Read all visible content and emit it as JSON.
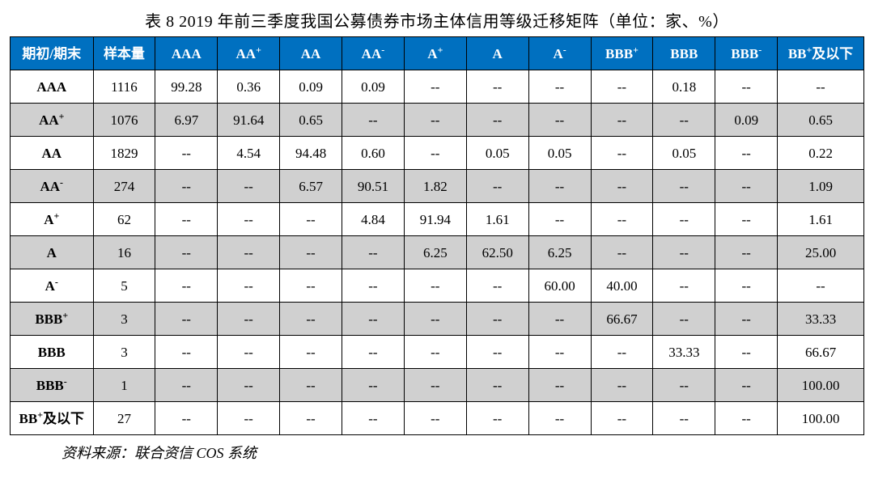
{
  "title": "表 8  2019 年前三季度我国公募债券市场主体信用等级迁移矩阵（单位：家、%）",
  "source": "资料来源：联合资信 COS 系统",
  "table": {
    "type": "table",
    "header_bg": "#0070c0",
    "header_fg": "#ffffff",
    "alt_row_bg": "#d0d0d0",
    "border_color": "#000000",
    "columns": [
      "期初/期末",
      "样本量",
      "AAA",
      "AA+",
      "AA",
      "AA-",
      "A+",
      "A",
      "A-",
      "BBB+",
      "BBB",
      "BBB-",
      "BB+及以下"
    ],
    "columns_html": [
      "期初/期末",
      "样本量",
      "AAA",
      "AA<sup>+</sup>",
      "AA",
      "AA<sup>-</sup>",
      "A<sup>+</sup>",
      "A",
      "A<sup>-</sup>",
      "BBB<sup>+</sup>",
      "BBB",
      "BBB<sup>-</sup>",
      "BB<sup>+</sup>及以下"
    ],
    "rows": [
      {
        "label": "AAA",
        "label_html": "AAA",
        "cells": [
          "1116",
          "99.28",
          "0.36",
          "0.09",
          "0.09",
          "--",
          "--",
          "--",
          "--",
          "0.18",
          "--",
          "--"
        ]
      },
      {
        "label": "AA+",
        "label_html": "AA<sup>+</sup>",
        "cells": [
          "1076",
          "6.97",
          "91.64",
          "0.65",
          "--",
          "--",
          "--",
          "--",
          "--",
          "--",
          "0.09",
          "0.65"
        ]
      },
      {
        "label": "AA",
        "label_html": "AA",
        "cells": [
          "1829",
          "--",
          "4.54",
          "94.48",
          "0.60",
          "--",
          "0.05",
          "0.05",
          "--",
          "0.05",
          "--",
          "0.22"
        ]
      },
      {
        "label": "AA-",
        "label_html": "AA<sup>-</sup>",
        "cells": [
          "274",
          "--",
          "--",
          "6.57",
          "90.51",
          "1.82",
          "--",
          "--",
          "--",
          "--",
          "--",
          "1.09"
        ]
      },
      {
        "label": "A+",
        "label_html": "A<sup>+</sup>",
        "cells": [
          "62",
          "--",
          "--",
          "--",
          "4.84",
          "91.94",
          "1.61",
          "--",
          "--",
          "--",
          "--",
          "1.61"
        ]
      },
      {
        "label": "A",
        "label_html": "A",
        "cells": [
          "16",
          "--",
          "--",
          "--",
          "--",
          "6.25",
          "62.50",
          "6.25",
          "--",
          "--",
          "--",
          "25.00"
        ]
      },
      {
        "label": "A-",
        "label_html": "A<sup>-</sup>",
        "cells": [
          "5",
          "--",
          "--",
          "--",
          "--",
          "--",
          "--",
          "60.00",
          "40.00",
          "--",
          "--",
          "--"
        ]
      },
      {
        "label": "BBB+",
        "label_html": "BBB<sup>+</sup>",
        "cells": [
          "3",
          "--",
          "--",
          "--",
          "--",
          "--",
          "--",
          "--",
          "66.67",
          "--",
          "--",
          "33.33"
        ]
      },
      {
        "label": "BBB",
        "label_html": "BBB",
        "cells": [
          "3",
          "--",
          "--",
          "--",
          "--",
          "--",
          "--",
          "--",
          "--",
          "33.33",
          "--",
          "66.67"
        ]
      },
      {
        "label": "BBB-",
        "label_html": "BBB<sup>-</sup>",
        "cells": [
          "1",
          "--",
          "--",
          "--",
          "--",
          "--",
          "--",
          "--",
          "--",
          "--",
          "--",
          "100.00"
        ]
      },
      {
        "label": "BB+及以下",
        "label_html": "BB<sup>+</sup>及以下",
        "cells": [
          "27",
          "--",
          "--",
          "--",
          "--",
          "--",
          "--",
          "--",
          "--",
          "--",
          "--",
          "100.00"
        ]
      }
    ]
  }
}
